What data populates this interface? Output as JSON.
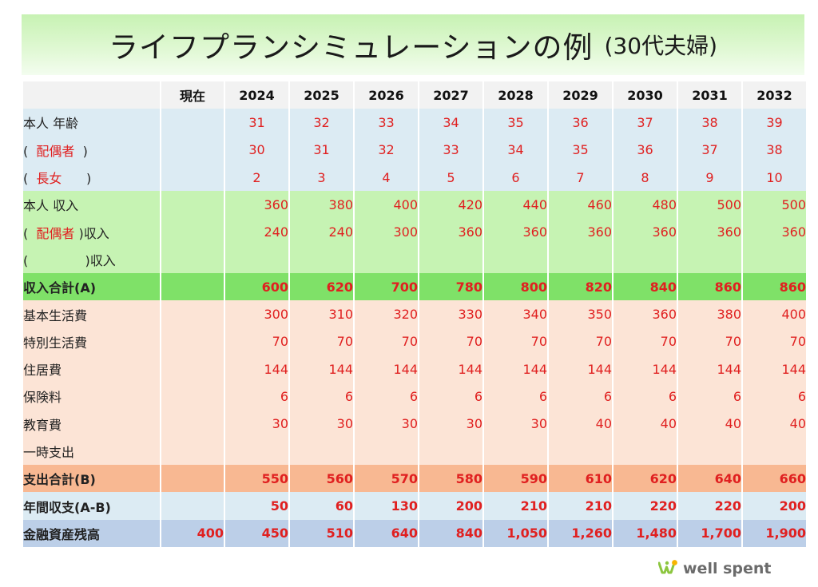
{
  "title": {
    "main": "ライフプランシミュレーションの例",
    "sub": "(30代夫婦)"
  },
  "header": {
    "now": "現在",
    "years": [
      "2024",
      "2025",
      "2026",
      "2027",
      "2028",
      "2029",
      "2030",
      "2031",
      "2032"
    ]
  },
  "rows": {
    "self_age": {
      "label": "本人 年齢",
      "values": [
        "31",
        "32",
        "33",
        "34",
        "35",
        "36",
        "37",
        "38",
        "39"
      ]
    },
    "spouse_age": {
      "label_open": "(",
      "label_red": "配偶者",
      "label_close": ")",
      "values": [
        "30",
        "31",
        "32",
        "33",
        "34",
        "35",
        "36",
        "37",
        "38"
      ]
    },
    "daughter_age": {
      "label_open": "(",
      "label_red": "長女",
      "label_close": ")",
      "values": [
        "2",
        "3",
        "4",
        "5",
        "6",
        "7",
        "8",
        "9",
        "10"
      ]
    },
    "self_income": {
      "label": "本人 収入",
      "values": [
        "360",
        "380",
        "400",
        "420",
        "440",
        "460",
        "480",
        "500",
        "500"
      ]
    },
    "spouse_income": {
      "label_open": "(",
      "label_red": "配偶者",
      "label_close": ")収入",
      "values": [
        "240",
        "240",
        "300",
        "360",
        "360",
        "360",
        "360",
        "360",
        "360"
      ]
    },
    "other_income": {
      "label_open": "(",
      "label_close": ")収入"
    },
    "income_total": {
      "label": "収入合計(A)",
      "values": [
        "600",
        "620",
        "700",
        "780",
        "800",
        "820",
        "840",
        "860",
        "860"
      ]
    },
    "basic_living": {
      "label": "基本生活費",
      "values": [
        "300",
        "310",
        "320",
        "330",
        "340",
        "350",
        "360",
        "380",
        "400"
      ]
    },
    "special_living": {
      "label": "特別生活費",
      "values": [
        "70",
        "70",
        "70",
        "70",
        "70",
        "70",
        "70",
        "70",
        "70"
      ]
    },
    "housing": {
      "label": "住居費",
      "values": [
        "144",
        "144",
        "144",
        "144",
        "144",
        "144",
        "144",
        "144",
        "144"
      ]
    },
    "insurance": {
      "label": "保険料",
      "values": [
        "6",
        "6",
        "6",
        "6",
        "6",
        "6",
        "6",
        "6",
        "6"
      ]
    },
    "education": {
      "label": "教育費",
      "values": [
        "30",
        "30",
        "30",
        "30",
        "30",
        "40",
        "40",
        "40",
        "40"
      ]
    },
    "one_time": {
      "label": "一時支出"
    },
    "expense_total": {
      "label": "支出合計(B)",
      "values": [
        "550",
        "560",
        "570",
        "580",
        "590",
        "610",
        "620",
        "640",
        "660"
      ]
    },
    "annual_balance": {
      "label": "年間収支(A-B)",
      "values": [
        "50",
        "60",
        "130",
        "200",
        "210",
        "210",
        "220",
        "220",
        "200"
      ]
    },
    "assets": {
      "label": "金融資産残高",
      "now": "400",
      "values": [
        "450",
        "510",
        "640",
        "840",
        "1,050",
        "1,260",
        "1,480",
        "1,700",
        "1,900"
      ]
    }
  },
  "logo": {
    "text": "well spent",
    "icon": "sprout-icon",
    "colors": [
      "#8cc63f",
      "#f7b500"
    ]
  },
  "colors": {
    "red_value": "#e02020",
    "age_row": "#dcebf3",
    "income_row": "#c6f3b3",
    "income_total": "#7fe168",
    "expense_row": "#fce4d6",
    "expense_total": "#f8b892",
    "asset_row": "#bccfe8"
  }
}
